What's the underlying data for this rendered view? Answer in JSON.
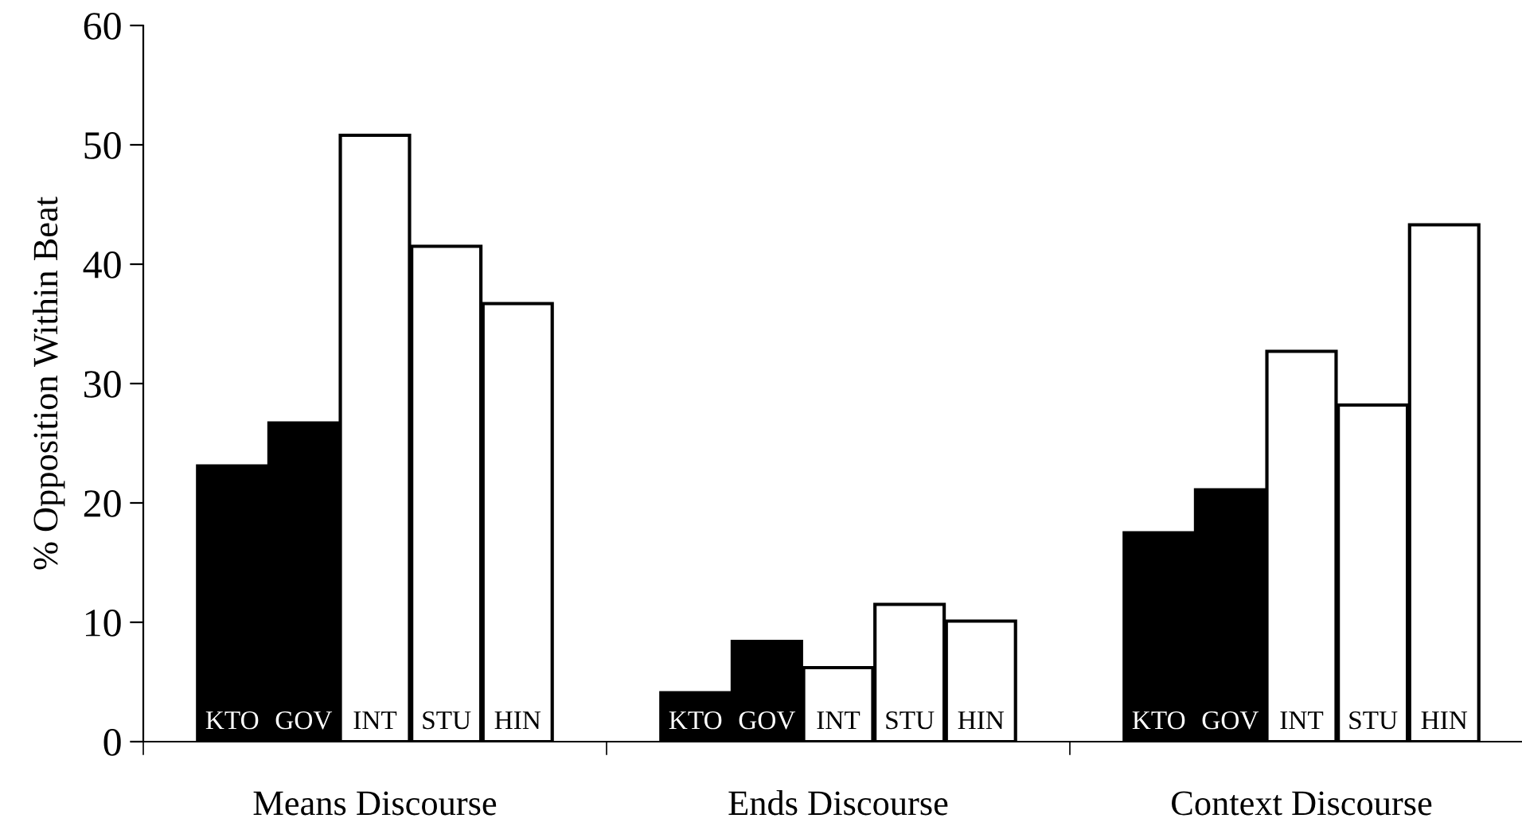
{
  "chart_data": {
    "type": "bar",
    "ylabel": "% Opposition Within Beat",
    "categories": [
      "Means Discourse",
      "Ends Discourse",
      "Context Discourse"
    ],
    "series": [
      {
        "name": "KTO",
        "color": "#000000",
        "values": [
          23.1,
          4.1,
          17.5
        ]
      },
      {
        "name": "GOV",
        "color": "#000000",
        "values": [
          26.7,
          8.4,
          21.1
        ]
      },
      {
        "name": "INT",
        "color": "#ffffff",
        "values": [
          50.8,
          6.2,
          32.7
        ]
      },
      {
        "name": "STU",
        "color": "#ffffff",
        "values": [
          41.5,
          11.5,
          28.2
        ]
      },
      {
        "name": "HIN",
        "color": "#ffffff",
        "values": [
          36.7,
          10.1,
          43.3
        ]
      }
    ],
    "ylim": [
      0,
      60
    ],
    "yticks": [
      0,
      10,
      20,
      30,
      40,
      50,
      60
    ],
    "grid": false
  }
}
